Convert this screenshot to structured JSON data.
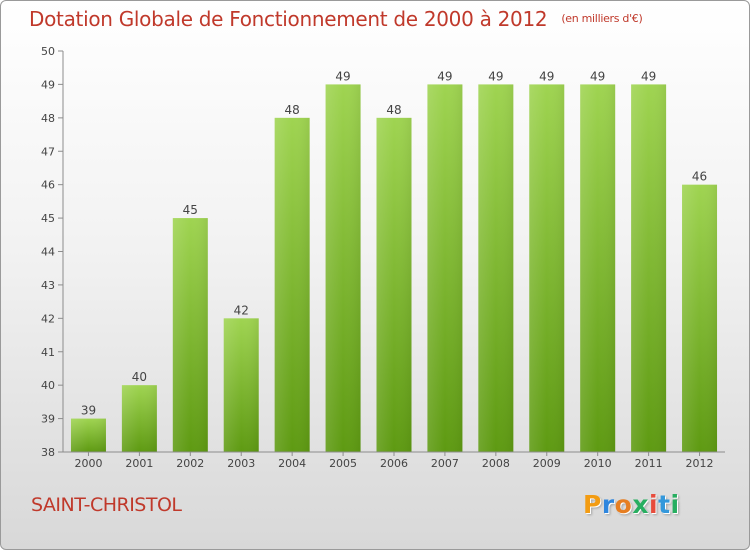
{
  "chart_data": {
    "type": "bar",
    "title": "Dotation Globale de Fonctionnement de 2000 à 2012",
    "subtitle": "(en milliers d'€)",
    "categories": [
      "2000",
      "2001",
      "2002",
      "2003",
      "2004",
      "2005",
      "2006",
      "2007",
      "2008",
      "2009",
      "2010",
      "2011",
      "2012"
    ],
    "values": [
      39,
      40,
      45,
      42,
      48,
      49,
      48,
      49,
      49,
      49,
      49,
      49,
      46
    ],
    "ylim": [
      38,
      50
    ],
    "yticks": [
      38,
      39,
      40,
      41,
      42,
      43,
      44,
      45,
      46,
      47,
      48,
      49,
      50
    ],
    "xlabel": "",
    "ylabel": "",
    "grid": false,
    "bar_color": "#7fbf2e",
    "title_color": "#c0392b"
  },
  "footer": {
    "town": "SAINT-CHRISTOL",
    "logo": [
      "P",
      "r",
      "o",
      "x",
      "i",
      "t",
      "i"
    ],
    "logo_colors": [
      "#f39c12",
      "#2e86de",
      "#e67e22",
      "#27ae60",
      "#e74c3c",
      "#3498db",
      "#27ae60"
    ]
  }
}
